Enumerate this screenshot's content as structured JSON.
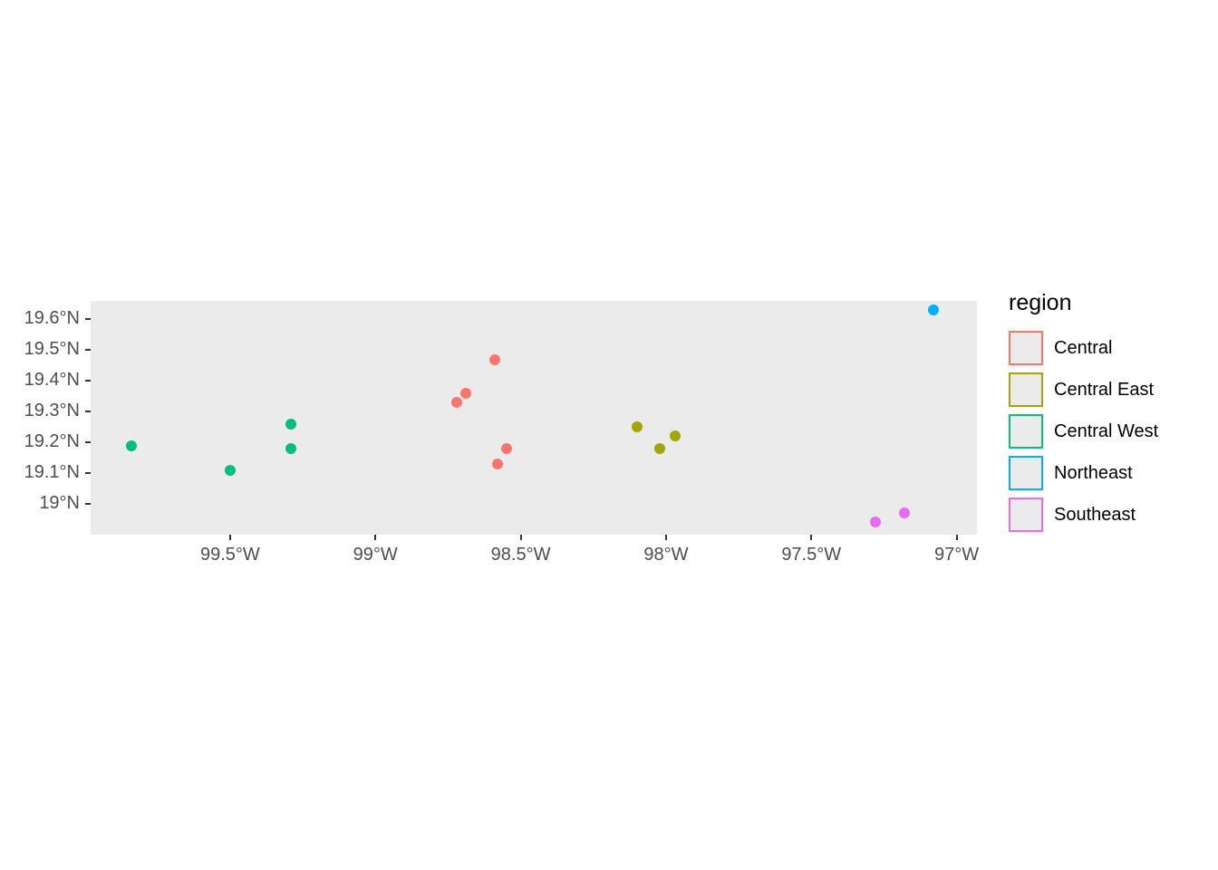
{
  "legend": {
    "title": "region"
  },
  "panel": {
    "background": "#EBEBEB"
  },
  "chart_data": {
    "type": "scatter",
    "title": "",
    "xlabel": "",
    "ylabel": "",
    "grid": false,
    "legend_position": "right",
    "xlim": [
      -99.98,
      -96.93
    ],
    "ylim": [
      18.9,
      19.66
    ],
    "x_ticks": [
      {
        "value": -99.5,
        "label": "99.5°W"
      },
      {
        "value": -99.0,
        "label": "99°W"
      },
      {
        "value": -98.5,
        "label": "98.5°W"
      },
      {
        "value": -98.0,
        "label": "98°W"
      },
      {
        "value": -97.5,
        "label": "97.5°W"
      },
      {
        "value": -97.0,
        "label": "97°W"
      }
    ],
    "y_ticks": [
      {
        "value": 19.6,
        "label": "19.6°N"
      },
      {
        "value": 19.5,
        "label": "19.5°N"
      },
      {
        "value": 19.4,
        "label": "19.4°N"
      },
      {
        "value": 19.3,
        "label": "19.3°N"
      },
      {
        "value": 19.2,
        "label": "19.2°N"
      },
      {
        "value": 19.1,
        "label": "19.1°N"
      },
      {
        "value": 19.0,
        "label": "19°N"
      }
    ],
    "series": [
      {
        "name": "Central",
        "color": "#F8766D",
        "points": [
          [
            -98.72,
            19.33
          ],
          [
            -98.69,
            19.36
          ],
          [
            -98.59,
            19.47
          ],
          [
            -98.55,
            19.18
          ],
          [
            -98.58,
            19.13
          ]
        ]
      },
      {
        "name": "Central East",
        "color": "#A3A500",
        "points": [
          [
            -98.1,
            19.25
          ],
          [
            -98.02,
            19.18
          ],
          [
            -97.97,
            19.22
          ]
        ]
      },
      {
        "name": "Central West",
        "color": "#00BF7D",
        "points": [
          [
            -99.84,
            19.19
          ],
          [
            -99.5,
            19.11
          ],
          [
            -99.29,
            19.26
          ],
          [
            -99.29,
            19.18
          ]
        ]
      },
      {
        "name": "Northeast",
        "color": "#00B0F6",
        "points": [
          [
            -97.08,
            19.63
          ]
        ]
      },
      {
        "name": "Southeast",
        "color": "#E76BF3",
        "points": [
          [
            -97.28,
            18.94
          ],
          [
            -97.18,
            18.97
          ]
        ]
      }
    ]
  }
}
